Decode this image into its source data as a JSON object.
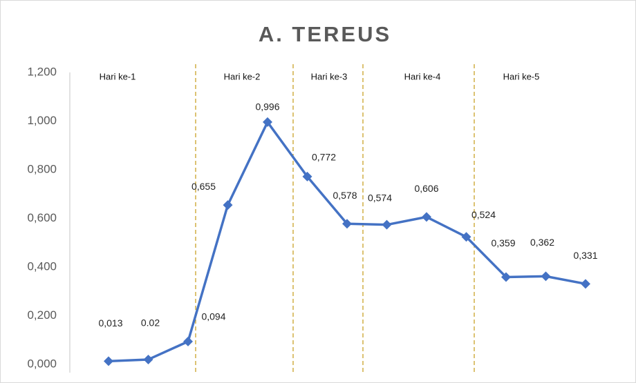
{
  "chart_data": {
    "type": "line",
    "title": "A. TEREUS",
    "categories": [
      null,
      null,
      null,
      null,
      null,
      null,
      null,
      null,
      null,
      null,
      null,
      null,
      null
    ],
    "values": [
      0.013,
      0.02,
      0.094,
      0.655,
      0.996,
      0.772,
      0.578,
      0.574,
      0.606,
      0.524,
      0.359,
      0.362,
      0.331
    ],
    "value_labels": [
      "0,013",
      "0.02",
      "0,094",
      "0,655",
      "0,996",
      "0,772",
      "0,578",
      "0,574",
      "0,606",
      "0,524",
      "0,359",
      "0,362",
      "0,331"
    ],
    "color": "#4472c4",
    "ylim": [
      0,
      1.2
    ],
    "yticks": [
      {
        "value": 0,
        "label": "0,000"
      },
      {
        "value": 0.2,
        "label": "0,200"
      },
      {
        "value": 0.4,
        "label": "0,400"
      },
      {
        "value": 0.6,
        "label": "0,600"
      },
      {
        "value": 0.8,
        "label": "0,800"
      },
      {
        "value": 1,
        "label": "1,000"
      },
      {
        "value": 1.2,
        "label": "1,200"
      }
    ],
    "grid": false,
    "annotations": [
      "Hari ke-1",
      "Hari ke-2",
      "Hari ke-3",
      "Hari ke-4",
      "Hari ke-5"
    ]
  }
}
